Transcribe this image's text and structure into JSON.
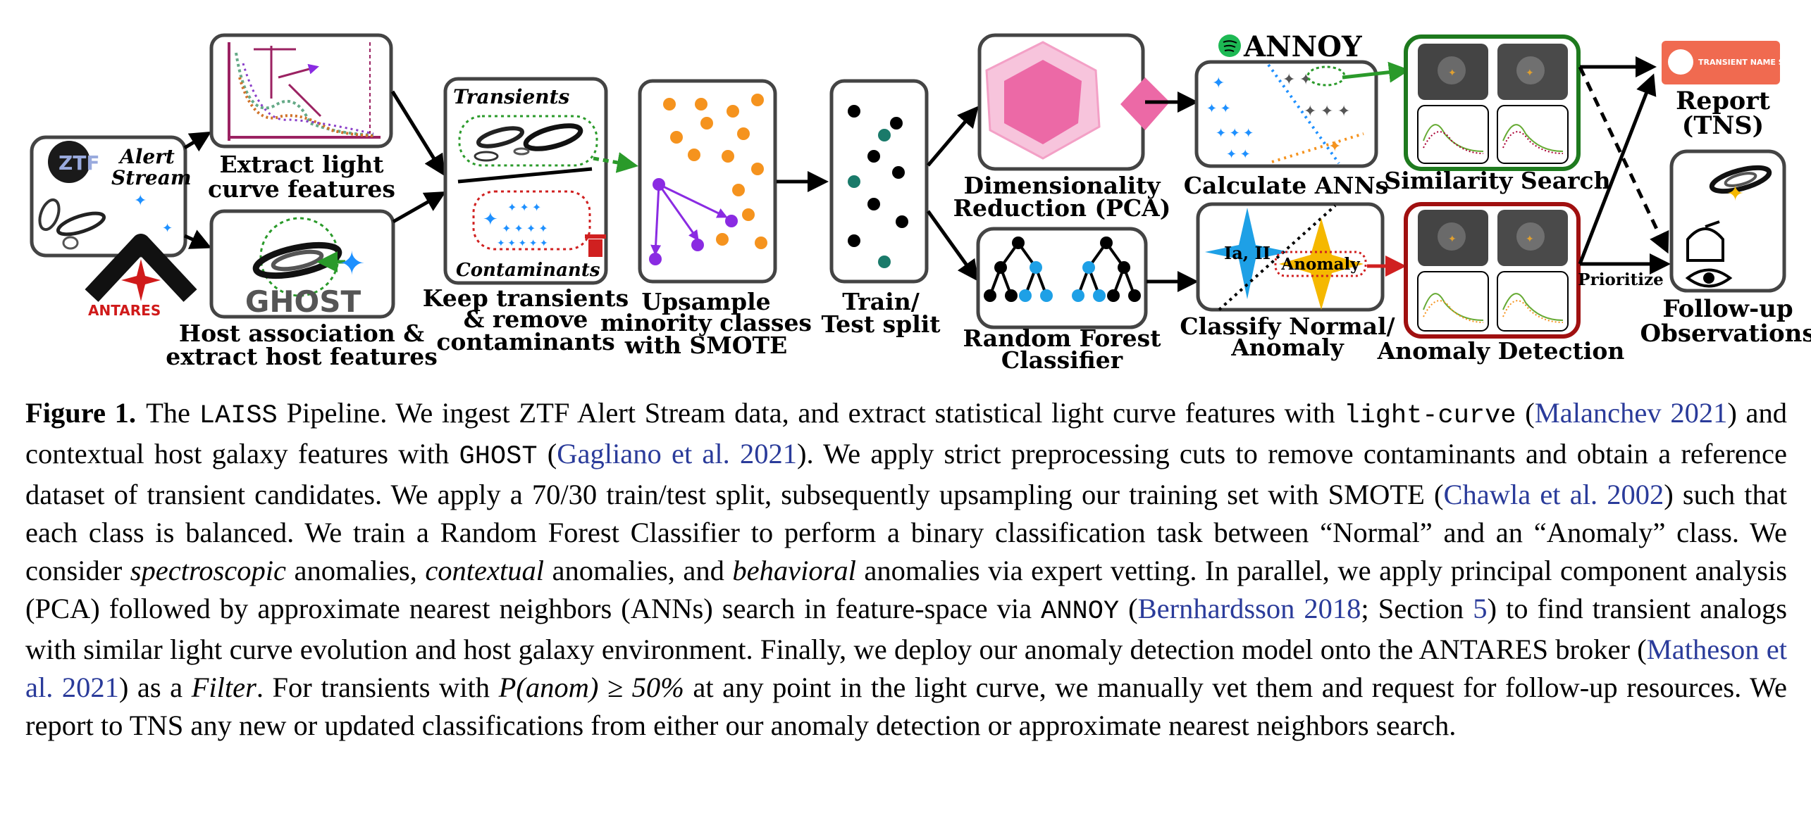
{
  "diagram": {
    "alert_stream": {
      "ztf": "ZTF",
      "line1": "Alert",
      "line2": "Stream"
    },
    "antares": "ANTARES",
    "extract_lc": [
      "Extract light",
      "curve features"
    ],
    "ghost_logo": "GHOST",
    "host_assoc": [
      "Host association &",
      "extract host features"
    ],
    "transients": "Transients",
    "contaminants": "Contaminants",
    "keep": [
      "Keep transients",
      "& remove",
      "contaminants"
    ],
    "upsample": [
      "Upsample",
      "minority classes",
      "with SMOTE"
    ],
    "train": [
      "Train/",
      "Test split"
    ],
    "annoy": "ANNOY",
    "dimred": [
      "Dimensionality",
      "Reduction (PCA)"
    ],
    "rf": [
      "Random Forest",
      "Classifier"
    ],
    "calc_ann": "Calculate ANNs",
    "classify": [
      "Classify Normal/",
      "Anomaly"
    ],
    "ia_ii": "Ia, II",
    "anomaly_tag": "Anomaly",
    "similarity": "Similarity Search",
    "anomaly_detection": "Anomaly Detection",
    "tns_banner": "TRANSIENT NAME SERVER",
    "report": [
      "Report",
      "(TNS)"
    ],
    "prioritize": "Prioritize",
    "followup": [
      "Follow-up",
      "Observations"
    ]
  },
  "caption": {
    "label": "Figure 1.",
    "s1": "The ",
    "laiss": "LAISS",
    "s2": " Pipeline. We ingest ZTF Alert Stream data, and extract statistical light curve features with ",
    "lightcurve": "light-curve",
    "s3": " (",
    "cite_malanchev": "Malanchev 2021",
    "s4": ") and contextual host galaxy features with ",
    "ghost": "GHOST",
    "s5": " (",
    "cite_gagliano": "Gagliano et al. 2021",
    "s6": "). We apply strict preprocessing cuts to remove contaminants and obtain a reference dataset of transient candidates. We apply a 70/30 train/test split, subsequently upsampling our training set with SMOTE (",
    "cite_chawla": "Chawla et al. 2002",
    "s7": ") such that each class is balanced. We train a Random Forest Classifier to perform a binary classification task between “Normal” and an “Anomaly” class. We consider ",
    "em_spec": "spectroscopic",
    "s8": " anomalies, ",
    "em_context": "contextual",
    "s9": " anomalies, and ",
    "em_behav": "behavioral",
    "s10": " anomalies via expert vetting. In parallel, we apply principal component analysis (PCA) followed by approximate nearest neighbors (ANNs) search in feature-space via ",
    "annoy": "ANNOY",
    "s11": " (",
    "cite_bern": "Bernhardsson 2018",
    "s12": "; Section ",
    "cite_section": "5",
    "s13": ") to find transient analogs with similar light curve evolution and host galaxy environment. Finally, we deploy our anomaly detection model onto the ANTARES broker (",
    "cite_matheson": "Matheson et al. 2021",
    "s14": ") as a ",
    "em_filter": "Filter",
    "s15": ". For transients with ",
    "math": "P(anom) ≥ 50%",
    "s16": " at any point in the light curve, we manually vet them and request for follow-up resources. We report to TNS any new or updated classifications from either our anomaly detection or approximate nearest neighbors search."
  }
}
